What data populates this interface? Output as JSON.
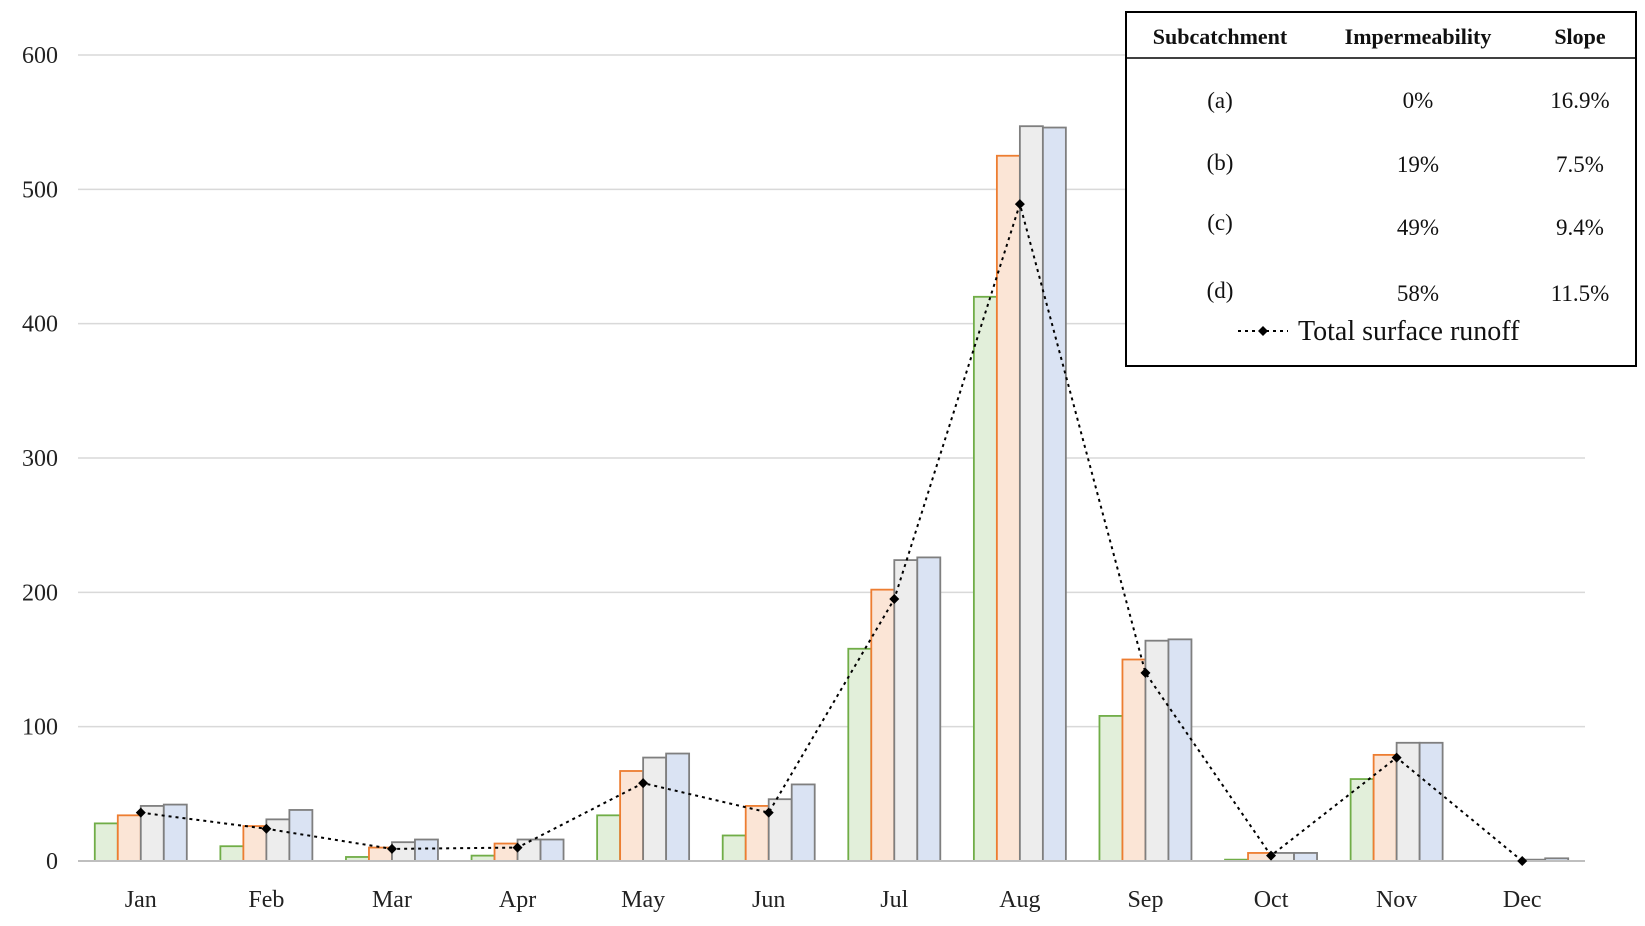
{
  "chart_data": {
    "type": "bar",
    "categories": [
      "Jan",
      "Feb",
      "Mar",
      "Apr",
      "May",
      "Jun",
      "Jul",
      "Aug",
      "Sep",
      "Oct",
      "Nov",
      "Dec"
    ],
    "ylim": [
      0,
      600
    ],
    "yticks": [
      0,
      100,
      200,
      300,
      400,
      500,
      600
    ],
    "grid": true,
    "series": [
      {
        "name": "(a)",
        "values": [
          28,
          11,
          3,
          4,
          34,
          19,
          158,
          420,
          108,
          1,
          61,
          0
        ],
        "fill": "#e2efda",
        "stroke": "#70ad47"
      },
      {
        "name": "(b)",
        "values": [
          34,
          26,
          10,
          13,
          67,
          41,
          202,
          525,
          150,
          6,
          79,
          0
        ],
        "fill": "#fbe5d6",
        "stroke": "#ed7d31"
      },
      {
        "name": "(c)",
        "values": [
          41,
          31,
          14,
          16,
          77,
          46,
          224,
          547,
          164,
          6,
          88,
          1
        ],
        "fill": "#ededed",
        "stroke": "#7f7f7f"
      },
      {
        "name": "(d)",
        "values": [
          42,
          38,
          16,
          16,
          80,
          57,
          226,
          546,
          165,
          6,
          88,
          2
        ],
        "fill": "#dae3f3",
        "stroke": "#7f7f7f"
      }
    ],
    "line_series": {
      "name": "Total surface runoff",
      "values": [
        36,
        24,
        9,
        10,
        58,
        36,
        195,
        489,
        140,
        4,
        77,
        0
      ],
      "color": "#000000",
      "style": "dotted",
      "marker": "diamond"
    },
    "legend": {
      "placement": "top-right",
      "headers": [
        "Subcatchment",
        "Impermeability",
        "Slope"
      ],
      "rows": [
        [
          "(a)",
          "0%",
          "16.9%"
        ],
        [
          "(b)",
          "19%",
          "7.5%"
        ],
        [
          "(c)",
          "49%",
          "9.4%"
        ],
        [
          "(d)",
          "58%",
          "11.5%"
        ]
      ],
      "line_label": "Total surface runoff"
    }
  }
}
